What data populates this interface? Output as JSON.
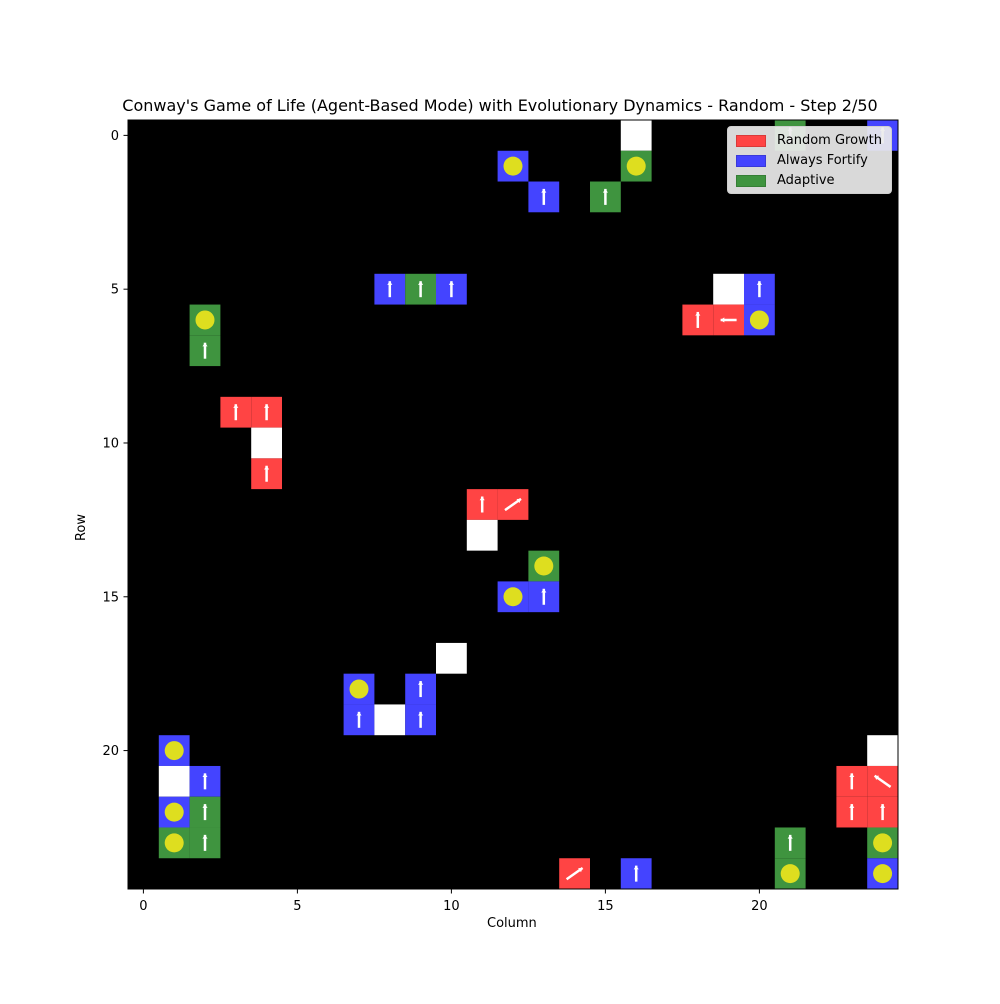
{
  "title": "Conway's Game of Life (Agent-Based Mode) with Evolutionary Dynamics - Random - Step 2/50",
  "xlabel": "Column",
  "ylabel": "Row",
  "grid_size": 25,
  "x_ticks": [
    "0",
    "5",
    "10",
    "15",
    "20"
  ],
  "y_ticks": [
    "0",
    "5",
    "10",
    "15",
    "20"
  ],
  "colors": {
    "background": "#000000",
    "random_growth": "#ff4444",
    "always_fortify": "#4444ff",
    "adaptive": "#3f943f",
    "empty_cell": "#ffffff",
    "food": "#dede1f",
    "arrow": "#ffffff"
  },
  "legend": [
    {
      "label": "Random Growth",
      "color": "#ff4444"
    },
    {
      "label": "Always Fortify",
      "color": "#4444ff"
    },
    {
      "label": "Adaptive",
      "color": "#3f943f"
    }
  ],
  "cells": [
    {
      "row": 0,
      "col": 16,
      "type": "white"
    },
    {
      "row": 0,
      "col": 21,
      "type": "adaptive",
      "arrow": "up"
    },
    {
      "row": 0,
      "col": 24,
      "type": "always_fortify",
      "arrow": "up"
    },
    {
      "row": 1,
      "col": 12,
      "type": "always_fortify",
      "food": true
    },
    {
      "row": 1,
      "col": 16,
      "type": "adaptive",
      "food": true
    },
    {
      "row": 2,
      "col": 13,
      "type": "always_fortify",
      "arrow": "up"
    },
    {
      "row": 2,
      "col": 15,
      "type": "adaptive",
      "arrow": "up"
    },
    {
      "row": 5,
      "col": 8,
      "type": "always_fortify",
      "arrow": "up"
    },
    {
      "row": 5,
      "col": 9,
      "type": "adaptive",
      "arrow": "up"
    },
    {
      "row": 5,
      "col": 10,
      "type": "always_fortify",
      "arrow": "up"
    },
    {
      "row": 5,
      "col": 19,
      "type": "white"
    },
    {
      "row": 5,
      "col": 20,
      "type": "always_fortify",
      "arrow": "up"
    },
    {
      "row": 6,
      "col": 2,
      "type": "adaptive",
      "food": true
    },
    {
      "row": 6,
      "col": 18,
      "type": "random_growth",
      "arrow": "up"
    },
    {
      "row": 6,
      "col": 19,
      "type": "random_growth",
      "arrow": "left"
    },
    {
      "row": 6,
      "col": 20,
      "type": "always_fortify",
      "food": true
    },
    {
      "row": 7,
      "col": 2,
      "type": "adaptive",
      "arrow": "up"
    },
    {
      "row": 9,
      "col": 3,
      "type": "random_growth",
      "arrow": "up"
    },
    {
      "row": 9,
      "col": 4,
      "type": "random_growth",
      "arrow": "up"
    },
    {
      "row": 10,
      "col": 4,
      "type": "white"
    },
    {
      "row": 11,
      "col": 4,
      "type": "random_growth",
      "arrow": "up"
    },
    {
      "row": 12,
      "col": 11,
      "type": "random_growth",
      "arrow": "up"
    },
    {
      "row": 12,
      "col": 12,
      "type": "random_growth",
      "arrow": "upright"
    },
    {
      "row": 13,
      "col": 11,
      "type": "white"
    },
    {
      "row": 14,
      "col": 13,
      "type": "adaptive",
      "food": true
    },
    {
      "row": 15,
      "col": 12,
      "type": "always_fortify",
      "food": true
    },
    {
      "row": 15,
      "col": 13,
      "type": "always_fortify",
      "arrow": "up"
    },
    {
      "row": 17,
      "col": 10,
      "type": "white"
    },
    {
      "row": 18,
      "col": 7,
      "type": "always_fortify",
      "food": true
    },
    {
      "row": 18,
      "col": 9,
      "type": "always_fortify",
      "arrow": "up"
    },
    {
      "row": 19,
      "col": 7,
      "type": "always_fortify",
      "arrow": "up"
    },
    {
      "row": 19,
      "col": 8,
      "type": "white"
    },
    {
      "row": 19,
      "col": 9,
      "type": "always_fortify",
      "arrow": "up"
    },
    {
      "row": 20,
      "col": 1,
      "type": "always_fortify",
      "food": true
    },
    {
      "row": 20,
      "col": 24,
      "type": "white"
    },
    {
      "row": 21,
      "col": 1,
      "type": "white"
    },
    {
      "row": 21,
      "col": 2,
      "type": "always_fortify",
      "arrow": "up"
    },
    {
      "row": 21,
      "col": 23,
      "type": "random_growth",
      "arrow": "up"
    },
    {
      "row": 21,
      "col": 24,
      "type": "random_growth",
      "arrow": "upleft"
    },
    {
      "row": 22,
      "col": 1,
      "type": "always_fortify",
      "food": true
    },
    {
      "row": 22,
      "col": 2,
      "type": "adaptive",
      "arrow": "up"
    },
    {
      "row": 22,
      "col": 23,
      "type": "random_growth",
      "arrow": "up"
    },
    {
      "row": 22,
      "col": 24,
      "type": "random_growth",
      "arrow": "up"
    },
    {
      "row": 23,
      "col": 1,
      "type": "adaptive",
      "food": true
    },
    {
      "row": 23,
      "col": 2,
      "type": "adaptive",
      "arrow": "up"
    },
    {
      "row": 23,
      "col": 21,
      "type": "adaptive",
      "arrow": "up"
    },
    {
      "row": 23,
      "col": 24,
      "type": "adaptive",
      "food": true
    },
    {
      "row": 24,
      "col": 14,
      "type": "random_growth",
      "arrow": "upright"
    },
    {
      "row": 24,
      "col": 16,
      "type": "always_fortify",
      "arrow": "up"
    },
    {
      "row": 24,
      "col": 21,
      "type": "adaptive",
      "food": true
    },
    {
      "row": 24,
      "col": 24,
      "type": "always_fortify",
      "food": true
    }
  ]
}
